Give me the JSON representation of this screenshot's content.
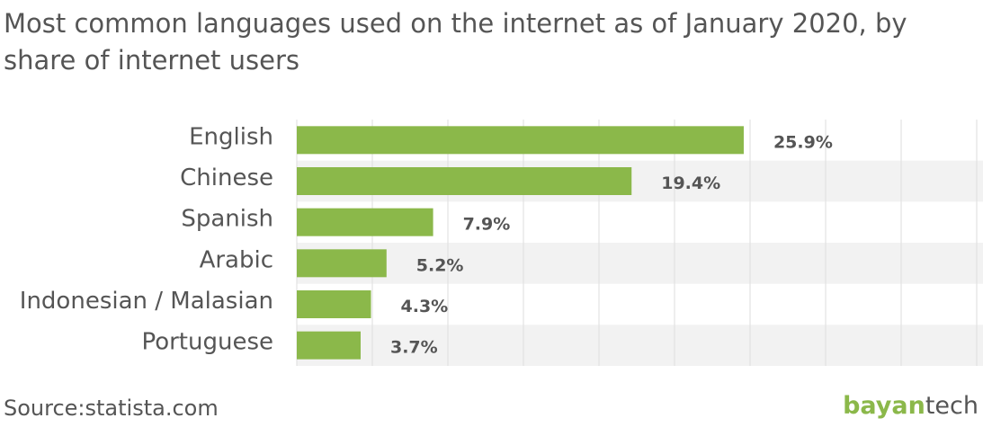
{
  "chart_data": {
    "type": "bar",
    "orientation": "horizontal",
    "title": "Most common languages used on the internet as of January 2020, by share of internet users",
    "categories": [
      "English",
      "Chinese",
      "Spanish",
      "Arabic",
      "Indonesian / Malasian",
      "Portuguese"
    ],
    "values": [
      25.9,
      19.4,
      7.9,
      5.2,
      4.3,
      3.7
    ],
    "value_labels": [
      "25.9%",
      "19.4%",
      "7.9%",
      "5.2%",
      "4.3%",
      "3.7%"
    ],
    "color": "#8bb84a",
    "xlim": [
      0,
      39.4
    ],
    "source": "Source:statista.com",
    "logo": {
      "brand": "bayan",
      "brand_suffix": "tech"
    }
  }
}
